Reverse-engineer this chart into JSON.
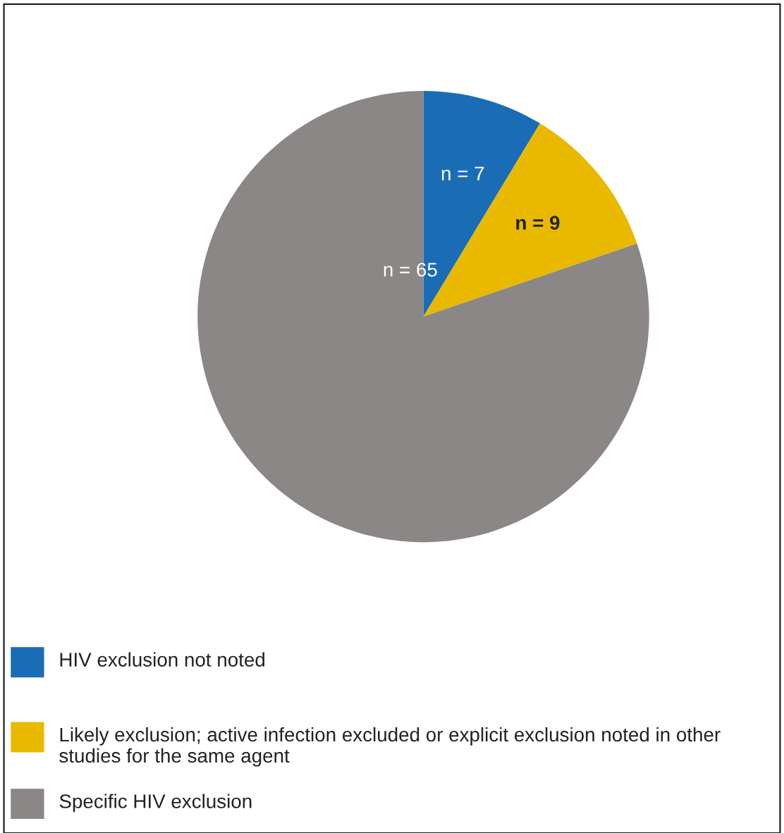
{
  "chart_data": {
    "type": "pie",
    "categories": [
      "HIV exclusion not noted",
      "Likely exclusion; active infection excluded or explicit exclusion noted in other studies for the same agent",
      "Specific HIV exclusion"
    ],
    "values": [
      7,
      9,
      65
    ],
    "colors": [
      "#1a6db5",
      "#e9b900",
      "#8b8786"
    ],
    "value_labels": [
      "n = 7",
      "n = 9",
      "n = 65"
    ],
    "legend": "bottom"
  }
}
